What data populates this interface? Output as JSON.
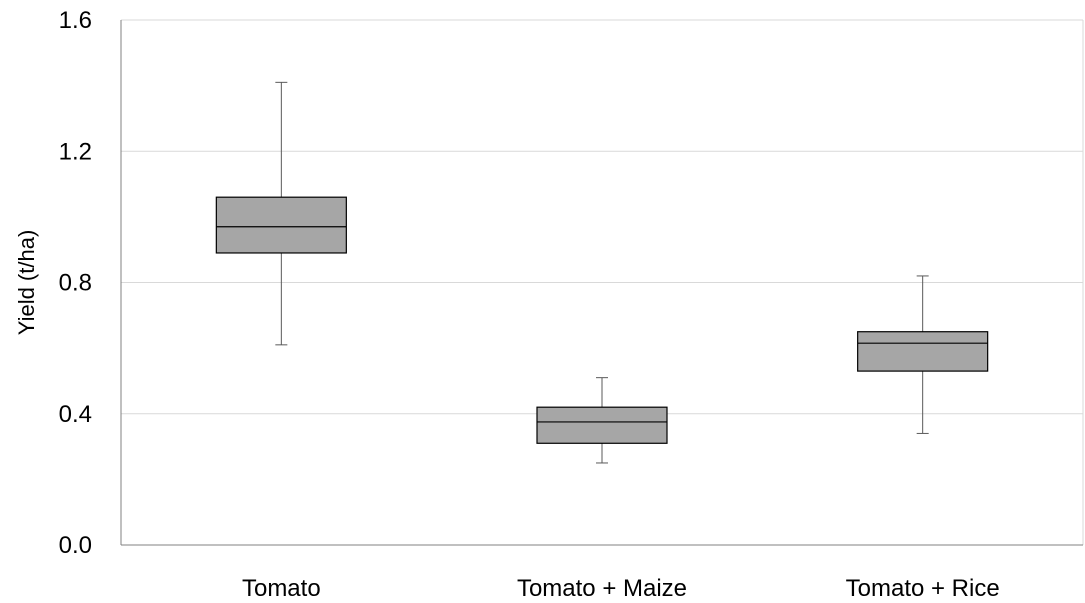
{
  "chart_data": {
    "type": "box",
    "title": "",
    "xlabel": "",
    "ylabel": "Yield (t/ha)",
    "ylim": [
      0.0,
      1.6
    ],
    "yticks": [
      "0.0",
      "0.4",
      "0.8",
      "1.2",
      "1.6"
    ],
    "ytick_values": [
      0.0,
      0.4,
      0.8,
      1.2,
      1.6
    ],
    "grid": true,
    "legend": "none",
    "categories": [
      "Tomato",
      "Tomato + Maize",
      "Tomato + Rice"
    ],
    "boxes": [
      {
        "category": "Tomato",
        "min": 0.61,
        "q1": 0.89,
        "median": 0.97,
        "q3": 1.06,
        "max": 1.41
      },
      {
        "category": "Tomato + Maize",
        "min": 0.25,
        "q1": 0.31,
        "median": 0.375,
        "q3": 0.42,
        "max": 0.51
      },
      {
        "category": "Tomato + Rice",
        "min": 0.34,
        "q1": 0.53,
        "median": 0.615,
        "q3": 0.65,
        "max": 0.82
      }
    ],
    "colors": {
      "box_fill": "#a6a6a6",
      "box_stroke": "#000000",
      "whisker": "#595959",
      "grid": "#d9d9d9",
      "axis": "#808080"
    }
  }
}
